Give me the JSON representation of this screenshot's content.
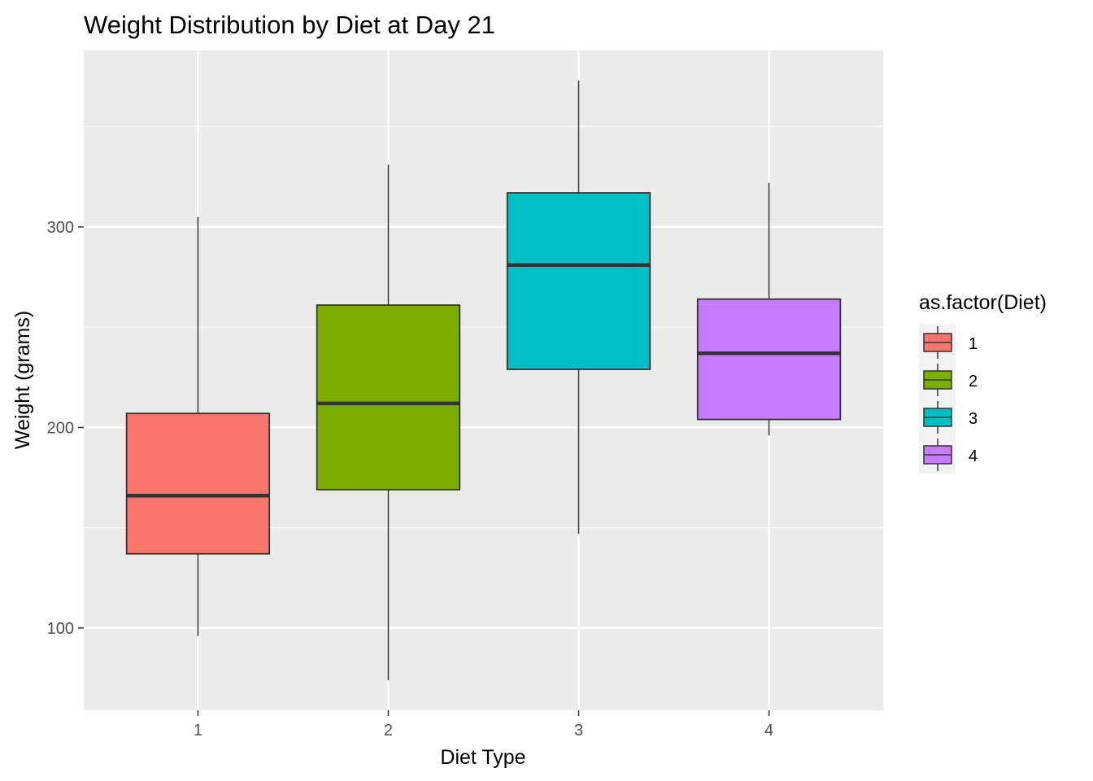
{
  "chart_data": {
    "type": "boxplot",
    "title": "Weight Distribution by Diet at Day 21",
    "xlabel": "Diet Type",
    "ylabel": "Weight (grams)",
    "categories": [
      "1",
      "2",
      "3",
      "4"
    ],
    "yticks": [
      100,
      200,
      300
    ],
    "ylim": [
      59,
      388
    ],
    "grid": true,
    "legend": {
      "title": "as.factor(Diet)",
      "placement": "right",
      "entries": [
        "1",
        "2",
        "3",
        "4"
      ]
    },
    "series": [
      {
        "category": "1",
        "min": 96,
        "q1": 137,
        "median": 166,
        "q3": 207,
        "max": 305,
        "color": "#F8766D"
      },
      {
        "category": "2",
        "min": 74,
        "q1": 169,
        "median": 212,
        "q3": 261,
        "max": 331,
        "color": "#7CAE00"
      },
      {
        "category": "3",
        "min": 147,
        "q1": 229,
        "median": 281,
        "q3": 317,
        "max": 373,
        "color": "#00BFC4"
      },
      {
        "category": "4",
        "min": 196,
        "q1": 204,
        "median": 237,
        "q3": 264,
        "max": 322,
        "color": "#C77CFF"
      }
    ],
    "colors": {
      "panel": "#EBEBEB",
      "grid": "#FFFFFF",
      "outline": "#333333",
      "legend_key_bg": "#F2F2F2"
    }
  }
}
